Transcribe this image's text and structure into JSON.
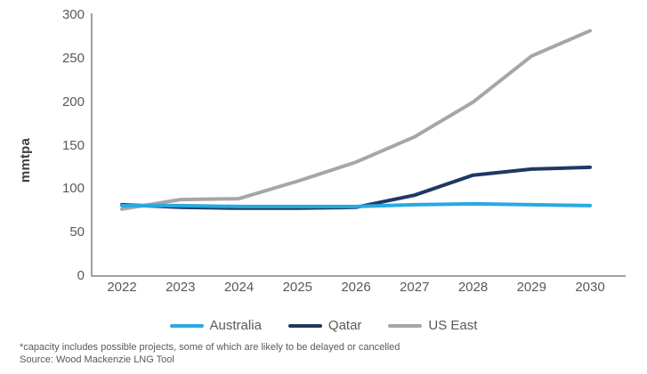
{
  "chart_data": {
    "type": "line",
    "title": "",
    "xlabel": "",
    "ylabel": "mmtpa",
    "x": [
      2022,
      2023,
      2024,
      2025,
      2026,
      2027,
      2028,
      2029,
      2030
    ],
    "series": [
      {
        "name": "Australia",
        "color": "#29A9E1",
        "values": [
          81,
          81,
          80,
          80,
          80,
          82,
          83,
          82,
          81
        ]
      },
      {
        "name": "Qatar",
        "color": "#1F3864",
        "values": [
          82,
          79,
          78,
          78,
          79,
          93,
          116,
          123,
          125
        ]
      },
      {
        "name": "US East",
        "color": "#A6A6A6",
        "values": [
          77,
          88,
          89,
          109,
          131,
          160,
          200,
          253,
          282
        ]
      }
    ],
    "ylim": [
      0,
      300
    ],
    "yticks": [
      0,
      50,
      100,
      150,
      200,
      250,
      300
    ],
    "grid": false,
    "legend_position": "bottom"
  },
  "footnotes": {
    "note": "*capacity includes possible projects, some of which are likely to be delayed or cancelled",
    "source": "Source: Wood Mackenzie LNG Tool"
  },
  "colors": {
    "axis_line": "#808080",
    "tick_text": "#595959",
    "footnote_text": "#595959"
  }
}
